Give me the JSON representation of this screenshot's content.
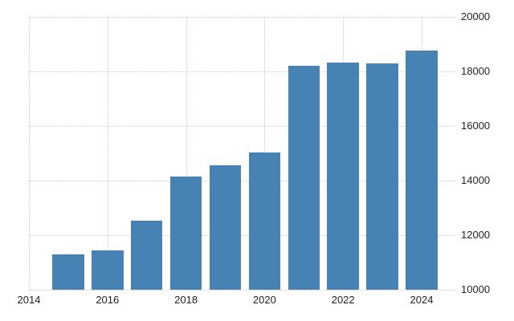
{
  "chart_data": {
    "type": "bar",
    "title": "",
    "xlabel": "",
    "ylabel": "",
    "categories": [
      "2015",
      "2016",
      "2017",
      "2018",
      "2019",
      "2020",
      "2021",
      "2022",
      "2023",
      "2024"
    ],
    "values": [
      11290,
      11450,
      12540,
      14150,
      14570,
      15040,
      18210,
      18330,
      18310,
      18780
    ],
    "ylim": [
      10000,
      20000
    ],
    "xlim": [
      2014,
      2024.88
    ],
    "y_ticks": [
      {
        "value": 10000,
        "label": "10000"
      },
      {
        "value": 12000,
        "label": "12000"
      },
      {
        "value": 14000,
        "label": "14000"
      },
      {
        "value": 16000,
        "label": "16000"
      },
      {
        "value": 18000,
        "label": "18000"
      },
      {
        "value": 20000,
        "label": "20000"
      }
    ],
    "x_ticks": [
      {
        "pos": 2014,
        "label": "2014"
      },
      {
        "pos": 2016,
        "label": "2016"
      },
      {
        "pos": 2018,
        "label": "2018"
      },
      {
        "pos": 2020,
        "label": "2020"
      },
      {
        "pos": 2022,
        "label": "2022"
      },
      {
        "pos": 2024,
        "label": "2024"
      }
    ],
    "grid": "dotted",
    "legend": false,
    "y_axis_side": "right",
    "colors": {
      "bar": "#4682b4",
      "grid": "#cccccc",
      "text": "#222222",
      "background": "#ffffff"
    }
  }
}
